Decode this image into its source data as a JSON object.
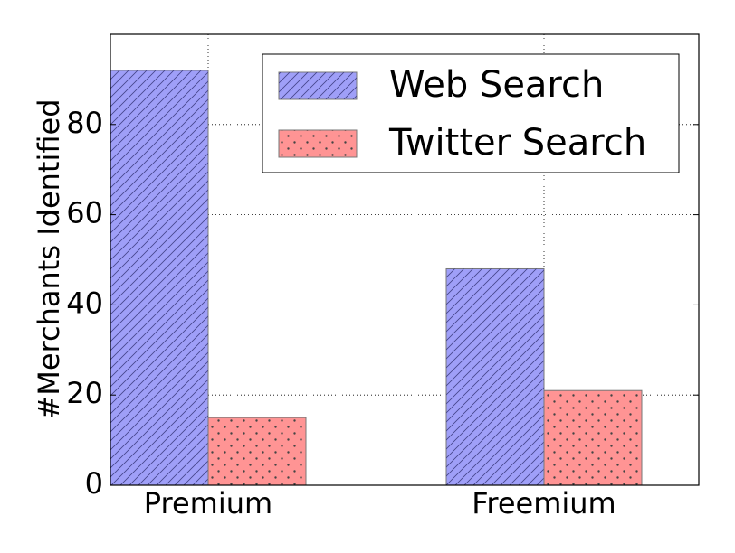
{
  "chart_data": {
    "type": "bar",
    "y_label": "#Merchants Identified",
    "categories": [
      "Premium",
      "Freemium"
    ],
    "series": [
      {
        "name": "Web Search",
        "color": "#9f9ff8",
        "hatch": "diagonal",
        "values": [
          92,
          48
        ]
      },
      {
        "name": "Twitter Search",
        "color": "#ff9494",
        "hatch": "dots",
        "values": [
          15,
          21
        ]
      }
    ],
    "ylim": [
      0,
      100
    ],
    "yticks": [
      0,
      20,
      40,
      60,
      80
    ],
    "grid": true,
    "legend": "upper right"
  }
}
